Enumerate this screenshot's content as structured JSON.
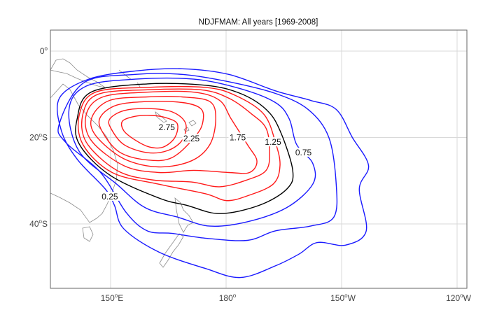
{
  "chart_data": {
    "type": "contour",
    "title": "NDJFMAM: All years [1969-2008]",
    "xlabel": "",
    "ylabel": "",
    "xlim_lon_east": [
      134.4,
      228
    ],
    "ylim_lat": [
      -55,
      4.9
    ],
    "grid": true,
    "x_ticks": [
      {
        "lon": 150,
        "deg": "150",
        "sup": "o",
        "hemi": "E"
      },
      {
        "lon": 180,
        "deg": "180",
        "sup": "o",
        "hemi": ""
      },
      {
        "lon": 210,
        "deg": "150",
        "sup": "o",
        "hemi": "W"
      },
      {
        "lon": 240,
        "deg": "120",
        "sup": "o",
        "hemi": "W"
      }
    ],
    "y_ticks": [
      {
        "lat": 0,
        "deg": "0",
        "sup": "o",
        "hemi": ""
      },
      {
        "lat": -20,
        "deg": "20",
        "sup": "o",
        "hemi": "S"
      },
      {
        "lat": -40,
        "deg": "40",
        "sup": "o",
        "hemi": "S"
      }
    ],
    "colors": {
      "low": "#1a1aff",
      "mid": "#000000",
      "high": "#ff1a1a",
      "grid": "#d9d9d9",
      "coast": "#8c8c8c"
    },
    "contours": [
      {
        "level": 0.25,
        "color": "low",
        "label": "0.25",
        "label_at": [
          149.8,
          -34
        ],
        "points": [
          [
            136.7,
            -10.9
          ],
          [
            144.3,
            -6.5
          ],
          [
            156.4,
            -4.6
          ],
          [
            168.6,
            -4.1
          ],
          [
            180.7,
            -5.4
          ],
          [
            192.8,
            -9.2
          ],
          [
            201.9,
            -11.4
          ],
          [
            208.6,
            -13.5
          ],
          [
            212.8,
            -20
          ],
          [
            217,
            -26.5
          ],
          [
            214.6,
            -31.9
          ],
          [
            216.4,
            -41.6
          ],
          [
            211,
            -44.9
          ],
          [
            203.7,
            -44.3
          ],
          [
            198.9,
            -47
          ],
          [
            192.8,
            -49.7
          ],
          [
            183.7,
            -52.4
          ],
          [
            174.6,
            -50.3
          ],
          [
            162.5,
            -46.5
          ],
          [
            153.4,
            -41.1
          ],
          [
            151,
            -35.7
          ],
          [
            148.6,
            -31.9
          ],
          [
            141.3,
            -25
          ],
          [
            137.2,
            -18.4
          ]
        ]
      },
      {
        "level": 0.5,
        "color": "low",
        "label": "",
        "label_at": null,
        "points": [
          [
            136.7,
            -16.8
          ],
          [
            143.1,
            -7.3
          ],
          [
            156.4,
            -5.4
          ],
          [
            168.6,
            -5.4
          ],
          [
            180.7,
            -7.1
          ],
          [
            192.8,
            -9.8
          ],
          [
            201.3,
            -13.5
          ],
          [
            206.7,
            -20
          ],
          [
            208.6,
            -30.8
          ],
          [
            208,
            -38.4
          ],
          [
            201.9,
            -40.5
          ],
          [
            192.8,
            -41.6
          ],
          [
            185.5,
            -43.8
          ],
          [
            174.6,
            -43.3
          ],
          [
            166.1,
            -42.2
          ],
          [
            159.5,
            -41.6
          ],
          [
            154,
            -37.3
          ],
          [
            147.4,
            -28.1
          ],
          [
            138.3,
            -21.1
          ]
        ]
      },
      {
        "level": 0.75,
        "color": "low",
        "label": "0.75",
        "label_at": [
          200.1,
          -23.8
        ],
        "points": [
          [
            139.2,
            -13.5
          ],
          [
            143.7,
            -8.1
          ],
          [
            156.4,
            -6.5
          ],
          [
            171.6,
            -6.5
          ],
          [
            183.7,
            -8.7
          ],
          [
            192.8,
            -11.9
          ],
          [
            196.4,
            -15.7
          ],
          [
            198.3,
            -21.6
          ],
          [
            202.5,
            -26
          ],
          [
            202.5,
            -30.8
          ],
          [
            195.8,
            -36.2
          ],
          [
            185.5,
            -39.5
          ],
          [
            175.8,
            -40.5
          ],
          [
            167.3,
            -38.4
          ],
          [
            158.9,
            -36.2
          ],
          [
            151.6,
            -30.8
          ],
          [
            141.9,
            -23.3
          ]
        ]
      },
      {
        "level": 1.0,
        "color": "mid",
        "label": "",
        "label_at": null,
        "points": [
          [
            141.3,
            -15.7
          ],
          [
            144.9,
            -9.5
          ],
          [
            159.5,
            -7.6
          ],
          [
            174.6,
            -7.9
          ],
          [
            183.7,
            -9.8
          ],
          [
            190.4,
            -13.5
          ],
          [
            194,
            -18.4
          ],
          [
            197.3,
            -27.6
          ],
          [
            195.8,
            -31.9
          ],
          [
            188.6,
            -35.7
          ],
          [
            178.3,
            -37.6
          ],
          [
            169.8,
            -35.7
          ],
          [
            162.5,
            -34
          ],
          [
            149.8,
            -28.7
          ],
          [
            141.9,
            -21.6
          ]
        ]
      },
      {
        "level": 1.25,
        "color": "high",
        "label": "1.25",
        "label_at": [
          192.2,
          -21.4
        ],
        "points": [
          [
            141.9,
            -14.6
          ],
          [
            146.1,
            -9.5
          ],
          [
            159.5,
            -8.4
          ],
          [
            174.6,
            -8.4
          ],
          [
            182.5,
            -10.3
          ],
          [
            189.8,
            -14.6
          ],
          [
            192.8,
            -21.1
          ],
          [
            194,
            -26.5
          ],
          [
            192.2,
            -30.8
          ],
          [
            185.5,
            -33.5
          ],
          [
            180.1,
            -34.6
          ],
          [
            174.6,
            -33
          ],
          [
            162.5,
            -30.8
          ],
          [
            150.4,
            -28.1
          ],
          [
            142.8,
            -21.6
          ]
        ]
      },
      {
        "level": 1.5,
        "color": "high",
        "label": "",
        "label_at": null,
        "points": [
          [
            142.8,
            -14.6
          ],
          [
            146.7,
            -10
          ],
          [
            159.5,
            -8.96
          ],
          [
            173.4,
            -8.96
          ],
          [
            180.7,
            -10.9
          ],
          [
            186.7,
            -14.6
          ],
          [
            190.4,
            -17.9
          ],
          [
            191.3,
            -23.3
          ],
          [
            190.4,
            -27.6
          ],
          [
            185.5,
            -29.8
          ],
          [
            178.3,
            -31.4
          ],
          [
            171,
            -30.3
          ],
          [
            160.7,
            -29.8
          ],
          [
            151.6,
            -27.6
          ],
          [
            143.7,
            -21.1
          ]
        ]
      },
      {
        "level": 1.75,
        "color": "high",
        "label": "1.75",
        "label_at": [
          183,
          -20.3
        ],
        "points": [
          [
            143.7,
            -14.6
          ],
          [
            148,
            -10.6
          ],
          [
            159.5,
            -9.5
          ],
          [
            171.6,
            -9.5
          ],
          [
            178.3,
            -11.4
          ],
          [
            181.3,
            -15.7
          ],
          [
            185.5,
            -21.6
          ],
          [
            188,
            -25.4
          ],
          [
            186.1,
            -28.1
          ],
          [
            180.7,
            -28.1
          ],
          [
            171.6,
            -27.6
          ],
          [
            162.5,
            -28.1
          ],
          [
            153.4,
            -26.5
          ],
          [
            144.9,
            -20.6
          ]
        ]
      },
      {
        "level": 2.0,
        "color": "high",
        "label": "",
        "label_at": null,
        "points": [
          [
            145.2,
            -15.2
          ],
          [
            149.8,
            -11.4
          ],
          [
            159.5,
            -10.6
          ],
          [
            168.6,
            -10.6
          ],
          [
            175.8,
            -11.7
          ],
          [
            177.3,
            -15.7
          ],
          [
            175.8,
            -21.6
          ],
          [
            171,
            -25.4
          ],
          [
            162.5,
            -26.8
          ],
          [
            153.4,
            -24.9
          ],
          [
            146.1,
            -19.5
          ]
        ]
      },
      {
        "level": 2.25,
        "color": "high",
        "label": "2.25",
        "label_at": [
          171,
          -20.6
        ],
        "points": [
          [
            147.4,
            -15.2
          ],
          [
            151.6,
            -12.5
          ],
          [
            159.5,
            -11.7
          ],
          [
            168.6,
            -11.9
          ],
          [
            173.4,
            -13.3
          ],
          [
            174,
            -16.2
          ],
          [
            172.2,
            -19.5
          ],
          [
            166.1,
            -24.6
          ],
          [
            159.5,
            -25.2
          ],
          [
            152.2,
            -23.3
          ],
          [
            147.7,
            -18.4
          ]
        ]
      },
      {
        "level": 2.5,
        "color": "high",
        "label": "",
        "label_at": null,
        "points": [
          [
            149.8,
            -15.7
          ],
          [
            153.4,
            -13.8
          ],
          [
            159.5,
            -13.3
          ],
          [
            166.1,
            -14.1
          ],
          [
            169.5,
            -16.8
          ],
          [
            168.6,
            -20.6
          ],
          [
            164.9,
            -23
          ],
          [
            159.5,
            -23.5
          ],
          [
            153.4,
            -21.6
          ],
          [
            150.1,
            -17.9
          ]
        ]
      },
      {
        "level": 2.75,
        "color": "high",
        "label": "2.75",
        "label_at": [
          164.6,
          -18
        ],
        "points": [
          [
            153.1,
            -16.2
          ],
          [
            156.4,
            -15.1
          ],
          [
            160.7,
            -14.9
          ],
          [
            164.3,
            -15.4
          ],
          [
            167.3,
            -16.8
          ],
          [
            166.7,
            -20
          ],
          [
            163.7,
            -22.2
          ],
          [
            160.1,
            -22.2
          ],
          [
            156.4,
            -20.6
          ],
          [
            153.4,
            -18.4
          ]
        ]
      }
    ]
  }
}
